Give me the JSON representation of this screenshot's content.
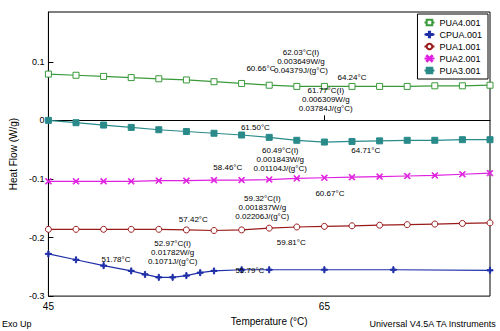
{
  "chart_data": {
    "type": "line",
    "x_label": "Temperature (°C)",
    "y_label": "Heat Flow (W/g)",
    "xlim": [
      45,
      77
    ],
    "xticks": [
      45,
      65
    ],
    "ylim": [
      -0.3,
      0.185
    ],
    "yticks": [
      -0.3,
      -0.2,
      -0.1,
      0,
      0.1
    ],
    "grid": false,
    "legend": "upper right",
    "footer_left": "Exo Up",
    "footer_right": "Universal V4.5A TA Instruments",
    "series": [
      {
        "name": "PUA4.001",
        "color": "#3a9a3a",
        "marker": "square-open",
        "line_style": "solid",
        "x": [
          45,
          47,
          49,
          51,
          53,
          55,
          57,
          59,
          61,
          63,
          65,
          67,
          69,
          71,
          73,
          75,
          77
        ],
        "values": [
          0.079,
          0.077,
          0.075,
          0.073,
          0.071,
          0.069,
          0.066,
          0.063,
          0.06,
          0.058,
          0.058,
          0.058,
          0.058,
          0.058,
          0.059,
          0.059,
          0.06
        ]
      },
      {
        "name": "CPUA.001",
        "color": "#1f2fa8",
        "marker": "plus",
        "line_style": "solid",
        "x": [
          45,
          47,
          49,
          51,
          52,
          53,
          54,
          55,
          56,
          57,
          59,
          61,
          65,
          70,
          77
        ],
        "values": [
          -0.228,
          -0.238,
          -0.248,
          -0.257,
          -0.263,
          -0.268,
          -0.268,
          -0.265,
          -0.26,
          -0.257,
          -0.255,
          -0.255,
          -0.255,
          -0.255,
          -0.256
        ]
      },
      {
        "name": "PUA1.001",
        "color": "#9a1a1a",
        "marker": "circle-open",
        "line_style": "solid",
        "x": [
          45,
          47,
          49,
          51,
          53,
          55,
          57,
          59,
          61,
          63,
          65,
          67,
          69,
          71,
          73,
          75,
          77
        ],
        "values": [
          -0.186,
          -0.186,
          -0.186,
          -0.186,
          -0.186,
          -0.187,
          -0.188,
          -0.187,
          -0.184,
          -0.182,
          -0.181,
          -0.18,
          -0.179,
          -0.178,
          -0.177,
          -0.176,
          -0.175
        ]
      },
      {
        "name": "PUA2.001",
        "color": "#e020e0",
        "marker": "cross",
        "line_style": "solid",
        "x": [
          45,
          47,
          49,
          51,
          53,
          55,
          57,
          59,
          61,
          63,
          65,
          67,
          69,
          71,
          73,
          75,
          77
        ],
        "values": [
          -0.104,
          -0.104,
          -0.104,
          -0.104,
          -0.103,
          -0.103,
          -0.102,
          -0.102,
          -0.101,
          -0.099,
          -0.098,
          -0.097,
          -0.096,
          -0.095,
          -0.094,
          -0.092,
          -0.09
        ]
      },
      {
        "name": "PUA3.001",
        "color": "#2a8a8a",
        "marker": "square",
        "line_style": "solid",
        "x": [
          45,
          47,
          49,
          51,
          53,
          55,
          57,
          59,
          61,
          63,
          65,
          67,
          69,
          71,
          73,
          75,
          77
        ],
        "values": [
          0.0,
          -0.004,
          -0.008,
          -0.012,
          -0.016,
          -0.019,
          -0.022,
          -0.025,
          -0.029,
          -0.034,
          -0.037,
          -0.036,
          -0.035,
          -0.034,
          -0.034,
          -0.033,
          -0.033
        ]
      }
    ],
    "annotations": [
      {
        "text": "60.66°C",
        "x": 60.4,
        "y": 0.088
      },
      {
        "text": "62.03°C(I)\n0.003649W/g\n0.04379J/(g°C)",
        "x": 63.3,
        "y": 0.1
      },
      {
        "text": "64.24°C",
        "x": 67.0,
        "y": 0.073
      },
      {
        "text": "61.77°C(I)\n0.006309W/g\n0.03784J/(g°C)",
        "x": 65.1,
        "y": 0.035
      },
      {
        "text": "61.50°C",
        "x": 60.0,
        "y": -0.013
      },
      {
        "text": "64.71°C",
        "x": 68.0,
        "y": -0.051
      },
      {
        "text": "60.49°C(I)\n0.001843W/g\n0.01104J/(g°C)",
        "x": 61.8,
        "y": -0.066
      },
      {
        "text": "58.46°C",
        "x": 58.0,
        "y": -0.08
      },
      {
        "text": "60.67°C",
        "x": 65.4,
        "y": -0.124
      },
      {
        "text": "59.32°C(I)\n0.001837W/g\n0.02206J/(g°C)",
        "x": 60.5,
        "y": -0.149
      },
      {
        "text": "57.42°C",
        "x": 55.5,
        "y": -0.169
      },
      {
        "text": "59.81°C",
        "x": 62.6,
        "y": -0.209
      },
      {
        "text": "52.97°C(I)\n0.01782W/g\n0.1071J/(g°C)",
        "x": 54.0,
        "y": -0.226
      },
      {
        "text": "51.78°C",
        "x": 49.9,
        "y": -0.238
      },
      {
        "text": "55.79°C",
        "x": 59.6,
        "y": -0.256
      }
    ]
  }
}
